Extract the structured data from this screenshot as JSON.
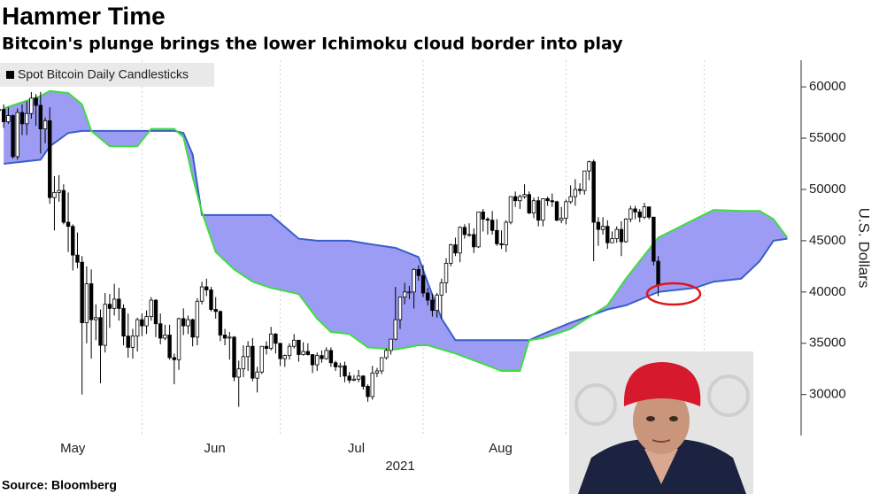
{
  "chart_data": {
    "type": "candlestick",
    "title": "Hammer Time",
    "subtitle": "Bitcoin's plunge brings the lower Ichimoku cloud border into play",
    "x_label": "2021",
    "y_label": "U.S. Dollars",
    "source": "Source: Bloomberg",
    "xlim": [
      30.2,
      204
    ],
    "ylim": [
      26000,
      62600
    ],
    "yticks": [
      30000,
      35000,
      40000,
      45000,
      50000,
      55000,
      60000
    ],
    "xticks": [
      {
        "value": 46,
        "label": "May"
      },
      {
        "value": 76.8,
        "label": "Jun"
      },
      {
        "value": 107.5,
        "label": "Jul"
      },
      {
        "value": 138.8,
        "label": "Aug"
      }
    ],
    "xgrid": [
      61,
      91,
      122,
      153,
      183
    ],
    "series": [
      {
        "name": "Spot Bitcoin Daily Candlesticks",
        "up_color": "#ffffff",
        "down_color": "#000000",
        "x": [
          30,
          31,
          32,
          33,
          34,
          35,
          36,
          37,
          38,
          39,
          40,
          41,
          42,
          43,
          44,
          45,
          46,
          47,
          48,
          49,
          50,
          51,
          52,
          53,
          54,
          55,
          56,
          57,
          58,
          59,
          60,
          61,
          62,
          63,
          64,
          65,
          66,
          67,
          68,
          69,
          70,
          71,
          72,
          73,
          74,
          75,
          76,
          77,
          78,
          79,
          80,
          81,
          82,
          83,
          84,
          85,
          86,
          87,
          88,
          89,
          90,
          91,
          92,
          93,
          94,
          95,
          96,
          97,
          98,
          99,
          100,
          101,
          102,
          103,
          104,
          105,
          106,
          107,
          108,
          109,
          110,
          111,
          112,
          113,
          114,
          115,
          116,
          117,
          118,
          119,
          120,
          121,
          122,
          123,
          124,
          125,
          126,
          127,
          128,
          129,
          130,
          131,
          132,
          133,
          134,
          135,
          136,
          137,
          138,
          139,
          140,
          141,
          142,
          143,
          144,
          145,
          146,
          147,
          148,
          149,
          150,
          151,
          152,
          153,
          154,
          155,
          156,
          157,
          158,
          159,
          160,
          161,
          162,
          163,
          164,
          165,
          166,
          167,
          168,
          169,
          170,
          171,
          172,
          173
        ],
        "open": [
          57700,
          57800,
          56600,
          57200,
          53200,
          57500,
          56400,
          57400,
          58900,
          58200,
          55900,
          56700,
          49200,
          49700,
          49900,
          46800,
          46400,
          43600,
          42900,
          37000,
          40800,
          37300,
          37500,
          34800,
          38800,
          38400,
          39300,
          38400,
          35700,
          34600,
          35700,
          37300,
          36700,
          37600,
          39200,
          36900,
          35500,
          35800,
          33600,
          33400,
          37400,
          36700,
          37300,
          35600,
          39100,
          40500,
          40200,
          38300,
          38100,
          35800,
          35500,
          35600,
          31700,
          32500,
          33700,
          34700,
          31600,
          32200,
          34700,
          34500,
          35900,
          35000,
          33500,
          33800,
          34700,
          35300,
          33900,
          34200,
          33900,
          32900,
          33800,
          33500,
          34300,
          33100,
          32700,
          32800,
          31800,
          31400,
          31500,
          31800,
          30800,
          29800,
          32100,
          32300,
          33600,
          34300,
          35400,
          37300,
          39500,
          40000,
          40000,
          42200,
          41600,
          39900,
          39200,
          38200,
          39700,
          40900,
          42800,
          44600,
          43800,
          46300,
          45600,
          45600,
          44400,
          47800,
          47100,
          47000,
          46000,
          44700,
          44600,
          46800,
          49300,
          48900,
          49300,
          49500,
          47700,
          48900,
          47000,
          49100,
          48900,
          48800,
          47000,
          47200,
          48800,
          49300,
          50000,
          49900,
          51800,
          52700,
          46800,
          46100,
          46400,
          44800,
          45200,
          46100,
          44900,
          47100,
          48100,
          47800,
          47300,
          48300,
          47300,
          43000
        ],
        "high": [
          58500,
          58300,
          58000,
          57300,
          57900,
          58300,
          58600,
          59500,
          59300,
          59500,
          57000,
          58000,
          51300,
          51400,
          50500,
          49700,
          46600,
          45800,
          43500,
          42500,
          42200,
          38800,
          38300,
          39900,
          39800,
          40800,
          40400,
          38800,
          37900,
          36400,
          37500,
          37900,
          38200,
          39500,
          39300,
          37900,
          36800,
          36800,
          34000,
          37500,
          38400,
          37700,
          37400,
          39400,
          41000,
          41300,
          40500,
          39500,
          38200,
          36400,
          36100,
          35700,
          33300,
          34800,
          35200,
          35500,
          32700,
          34700,
          35200,
          36600,
          36000,
          35000,
          33900,
          35000,
          35900,
          35300,
          35100,
          35000,
          33900,
          34100,
          34300,
          34600,
          34600,
          33300,
          33100,
          33200,
          32200,
          31900,
          32400,
          31900,
          31000,
          32800,
          32600,
          33600,
          34500,
          35400,
          40500,
          39500,
          40900,
          40600,
          42300,
          42600,
          42600,
          40400,
          39800,
          39900,
          41300,
          43300,
          44700,
          45300,
          46400,
          46600,
          46700,
          46200,
          47800,
          48100,
          47300,
          47900,
          47100,
          46000,
          47000,
          49300,
          49800,
          49500,
          50500,
          49800,
          49200,
          49300,
          49100,
          49300,
          49600,
          48900,
          48300,
          49000,
          50400,
          51000,
          50600,
          51800,
          52800,
          52900,
          47300,
          47300,
          47000,
          45900,
          46400,
          46900,
          47200,
          48400,
          48400,
          48100,
          48700,
          48300,
          47300,
          43500
        ],
        "low": [
          57000,
          56000,
          56400,
          53000,
          52900,
          55300,
          55300,
          56900,
          56200,
          53500,
          54500,
          48600,
          46000,
          48800,
          46600,
          43900,
          42100,
          42300,
          30000,
          35000,
          33500,
          35300,
          31100,
          34100,
          36500,
          37700,
          37200,
          34800,
          33600,
          33500,
          34200,
          35700,
          35900,
          37200,
          35600,
          34900,
          35300,
          33400,
          31000,
          32400,
          35800,
          35900,
          34700,
          34800,
          38800,
          39600,
          38100,
          37400,
          35200,
          34800,
          33400,
          31300,
          28800,
          31700,
          32300,
          31300,
          30200,
          32000,
          33900,
          34300,
          34000,
          32800,
          32700,
          33400,
          34500,
          33200,
          33800,
          33800,
          32100,
          32300,
          33100,
          33400,
          32700,
          32300,
          31700,
          31200,
          31100,
          31300,
          31200,
          30500,
          29300,
          29500,
          31700,
          32000,
          33400,
          33900,
          35300,
          36400,
          38800,
          39300,
          38400,
          41100,
          39500,
          38700,
          37600,
          37500,
          37400,
          39900,
          42500,
          43500,
          42900,
          45200,
          45400,
          43800,
          44300,
          45900,
          45600,
          45600,
          44500,
          44200,
          43900,
          46600,
          48300,
          48100,
          49100,
          47600,
          47200,
          46400,
          46400,
          48400,
          48300,
          46900,
          46700,
          46600,
          48600,
          48400,
          49500,
          49500,
          50900,
          43000,
          44500,
          45600,
          44200,
          44800,
          44800,
          43500,
          44800,
          46800,
          47100,
          46800,
          47100,
          47100,
          42600,
          39600
        ],
        "close": [
          57800,
          56600,
          57200,
          53200,
          57500,
          56400,
          57400,
          58900,
          58200,
          55900,
          56700,
          49200,
          49700,
          49900,
          46800,
          46400,
          43600,
          42900,
          37000,
          40800,
          37300,
          37500,
          34800,
          38800,
          38400,
          39300,
          38400,
          35700,
          34600,
          35700,
          37300,
          36700,
          37600,
          39200,
          36900,
          35500,
          35800,
          33600,
          33400,
          37400,
          36700,
          37300,
          35600,
          39100,
          40500,
          40200,
          38300,
          38100,
          35800,
          35500,
          35600,
          31700,
          32500,
          33700,
          34700,
          31600,
          32200,
          34700,
          34500,
          35900,
          35000,
          33500,
          33800,
          34700,
          35300,
          33900,
          34200,
          33900,
          32900,
          33800,
          33500,
          34300,
          33100,
          32700,
          32800,
          31800,
          31400,
          31500,
          31800,
          30800,
          29800,
          32100,
          32300,
          33600,
          34300,
          35400,
          37300,
          39500,
          40000,
          40000,
          42200,
          41600,
          39900,
          39200,
          38200,
          39700,
          40900,
          42800,
          44600,
          43800,
          46300,
          45600,
          45600,
          44400,
          47800,
          47100,
          47000,
          46000,
          44700,
          44600,
          46800,
          49300,
          48900,
          49300,
          49500,
          47700,
          48900,
          47000,
          49100,
          48900,
          48800,
          47000,
          47200,
          48800,
          49300,
          50000,
          49900,
          51800,
          52700,
          46800,
          46100,
          46400,
          44800,
          45200,
          46100,
          44900,
          47100,
          48100,
          47800,
          47300,
          48300,
          47300,
          43000,
          40700
        ]
      }
    ],
    "cloud": {
      "fill": "#9c9cf5",
      "span_a_color": "#3fdc3f",
      "span_b_color": "#3a5fc8",
      "x": [
        31,
        39,
        41,
        45,
        48,
        50,
        54,
        60,
        63,
        68,
        70,
        72,
        74,
        77,
        81,
        85,
        89,
        95,
        99,
        102,
        106,
        110,
        116,
        121,
        123,
        126,
        129,
        135,
        139,
        143,
        145,
        148,
        154,
        162,
        166,
        173,
        177,
        181,
        185,
        191,
        195,
        198,
        201
      ],
      "span_a": [
        57900,
        59100,
        59600,
        59400,
        58300,
        55700,
        54200,
        54200,
        55900,
        55900,
        55100,
        51200,
        47800,
        43900,
        42200,
        41000,
        40400,
        39800,
        37400,
        36100,
        35900,
        34600,
        34400,
        34800,
        34800,
        34400,
        34000,
        33000,
        32300,
        32300,
        35300,
        35500,
        36400,
        38700,
        41300,
        45300,
        46200,
        47100,
        48000,
        47900,
        47900,
        47100,
        45300
      ],
      "span_b": [
        52500,
        52900,
        54200,
        55500,
        55700,
        55700,
        55700,
        55700,
        55700,
        55700,
        55500,
        53400,
        47500,
        47500,
        47500,
        47500,
        47500,
        45200,
        45000,
        45000,
        45000,
        44700,
        44300,
        43400,
        40900,
        37400,
        35300,
        35300,
        35300,
        35300,
        35300,
        35900,
        37000,
        38300,
        38700,
        40000,
        40200,
        40400,
        41000,
        41300,
        43000,
        45000,
        45200
      ]
    }
  }
}
